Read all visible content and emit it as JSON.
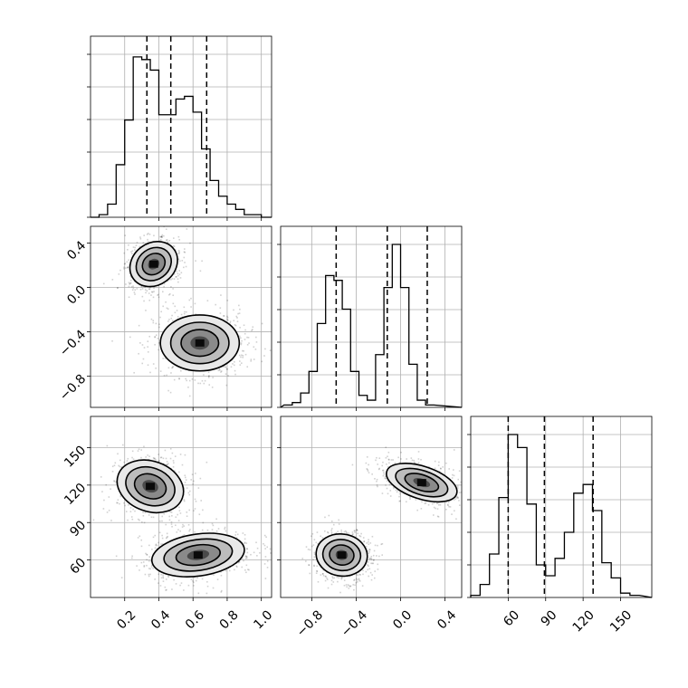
{
  "chart_data": {
    "type": "corner",
    "grid": true,
    "parameters": [
      {
        "range": [
          0.0,
          1.06
        ],
        "ticks": [
          0.2,
          0.4,
          0.6,
          0.8,
          1.0
        ],
        "tick_labels": [
          "0.2",
          "0.4",
          "0.6",
          "0.8",
          "1.0"
        ]
      },
      {
        "range": [
          -1.08,
          0.55
        ],
        "ticks": [
          -0.8,
          -0.4,
          0.0,
          0.4
        ],
        "tick_labels": [
          "−0.8",
          "−0.4",
          "0.0",
          "0.4"
        ]
      },
      {
        "range": [
          30,
          175
        ],
        "ticks": [
          60,
          90,
          120,
          150
        ],
        "tick_labels": [
          "60",
          "90",
          "120",
          "150"
        ]
      }
    ],
    "histograms": [
      {
        "param": 0,
        "bin_start": 0.0,
        "bin_width": 0.05,
        "max": 62,
        "counts": [
          0,
          1,
          5,
          20,
          37,
          61,
          60,
          56,
          39,
          39,
          45,
          46,
          40,
          26,
          14,
          8,
          5,
          3,
          1,
          1,
          0
        ],
        "quantiles": [
          0.33,
          0.47,
          0.68
        ]
      },
      {
        "param": 1,
        "bin_start": -1.05,
        "bin_width": 0.075,
        "max": 68,
        "counts": [
          1,
          2,
          6,
          15,
          35,
          55,
          53,
          41,
          15,
          5,
          3,
          22,
          50,
          68,
          50,
          18,
          3,
          1
        ],
        "quantiles": [
          -0.58,
          -0.12,
          0.24
        ]
      },
      {
        "param": 2,
        "bin_start": 30,
        "bin_width": 7.5,
        "max": 75,
        "counts": [
          1,
          6,
          20,
          46,
          75,
          69,
          43,
          15,
          10,
          18,
          30,
          48,
          52,
          40,
          16,
          9,
          2,
          1
        ],
        "quantiles": [
          60,
          89,
          128
        ]
      }
    ],
    "scatter_panels": [
      {
        "x_param": 0,
        "y_param": 1,
        "sample_count": 5000,
        "modes": [
          {
            "center": [
              0.37,
              0.21
            ],
            "sigma": [
              0.07,
              0.09
            ],
            "angle_deg": 36,
            "weight": 0.5
          },
          {
            "center": [
              0.64,
              -0.5
            ],
            "sigma": [
              0.11,
              0.12
            ],
            "angle_deg": 0,
            "weight": 0.5
          }
        ]
      },
      {
        "x_param": 0,
        "y_param": 2,
        "sample_count": 5000,
        "modes": [
          {
            "center": [
              0.35,
              119
            ],
            "sigma": [
              0.07,
              13
            ],
            "angle_deg": 70,
            "weight": 0.5
          },
          {
            "center": [
              0.63,
              64
            ],
            "sigma": [
              0.13,
              8
            ],
            "angle_deg": 8,
            "weight": 0.5
          }
        ]
      },
      {
        "x_param": 1,
        "y_param": 2,
        "sample_count": 5000,
        "modes": [
          {
            "center": [
              0.19,
              122
            ],
            "sigma": [
              0.07,
              14
            ],
            "angle_deg": 72,
            "weight": 0.5
          },
          {
            "center": [
              -0.53,
              64
            ],
            "sigma": [
              0.11,
              8
            ],
            "angle_deg": -8,
            "weight": 0.5
          }
        ]
      }
    ]
  }
}
